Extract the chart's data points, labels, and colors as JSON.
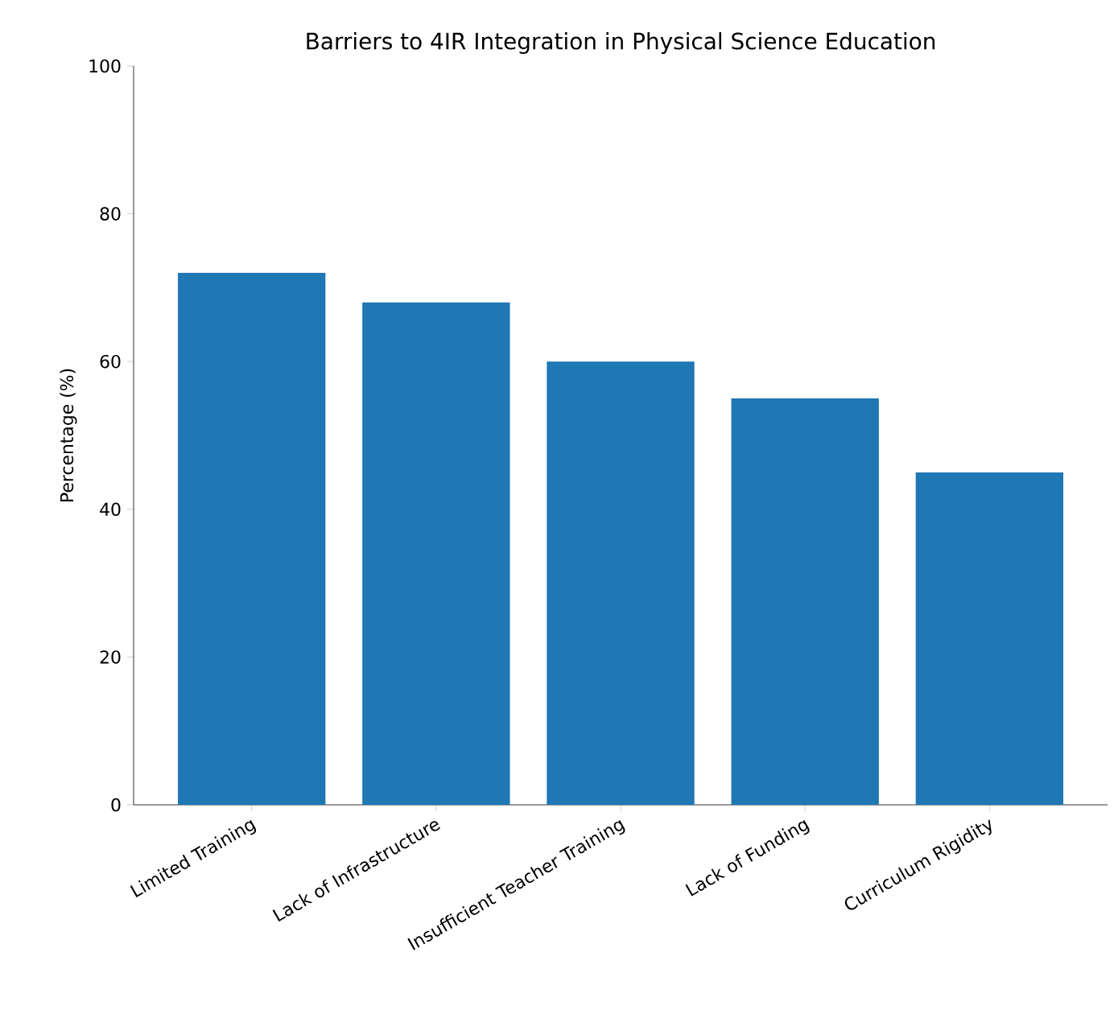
{
  "chart_data": {
    "type": "bar",
    "title": "Barriers to 4IR Integration in Physical Science Education",
    "ylabel": "Percentage (%)",
    "categories": [
      "Limited Training",
      "Lack of Infrastructure",
      "Insufficient Teacher Training",
      "Lack of Funding",
      "Curriculum Rigidity"
    ],
    "values": [
      72,
      68,
      60,
      55,
      45
    ],
    "color": "#1f77b4",
    "ylim": [
      0,
      100
    ],
    "yticks": [
      0,
      20,
      40,
      60,
      80,
      100
    ],
    "grid": false
  }
}
